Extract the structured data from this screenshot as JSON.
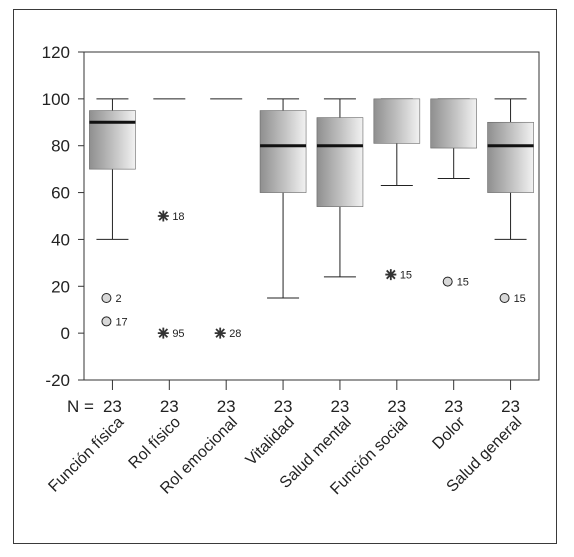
{
  "chart_data": {
    "type": "boxplot",
    "title": "",
    "xlabel": "",
    "ylabel": "",
    "ylim": [
      -20,
      120
    ],
    "yticks": [
      -20,
      0,
      20,
      40,
      60,
      80,
      100,
      120
    ],
    "n_label": "N =",
    "categories": [
      "Función física",
      "Rol físico",
      "Rol emocional",
      "Vitalidad",
      "Salud mental",
      "Función social",
      "Dolor",
      "Salud general"
    ],
    "n_values": [
      "23",
      "23",
      "23",
      "23",
      "23",
      "23",
      "23",
      "23"
    ],
    "boxes": [
      {
        "category": "Función física",
        "whisker_low": 40,
        "q1": 70,
        "median": 90,
        "q3": 95,
        "whisker_high": 100
      },
      {
        "category": "Rol físico",
        "whisker_low": 100,
        "q1": 100,
        "median": 100,
        "q3": 100,
        "whisker_high": 100
      },
      {
        "category": "Rol emocional",
        "whisker_low": 100,
        "q1": 100,
        "median": 100,
        "q3": 100,
        "whisker_high": 100
      },
      {
        "category": "Vitalidad",
        "whisker_low": 15,
        "q1": 60,
        "median": 80,
        "q3": 95,
        "whisker_high": 100
      },
      {
        "category": "Salud mental",
        "whisker_low": 24,
        "q1": 54,
        "median": 80,
        "q3": 92,
        "whisker_high": 100
      },
      {
        "category": "Función social",
        "whisker_low": 63,
        "q1": 81,
        "median": 100,
        "q3": 100,
        "whisker_high": 100
      },
      {
        "category": "Dolor",
        "whisker_low": 66,
        "q1": 79,
        "median": 100,
        "q3": 100,
        "whisker_high": 100
      },
      {
        "category": "Salud general",
        "whisker_low": 40,
        "q1": 60,
        "median": 80,
        "q3": 90,
        "whisker_high": 100
      }
    ],
    "outliers": [
      {
        "category": "Función física",
        "value": 15,
        "marker": "circle",
        "label": "2"
      },
      {
        "category": "Función física",
        "value": 5,
        "marker": "circle",
        "label": "17"
      },
      {
        "category": "Rol físico",
        "value": 50,
        "marker": "star",
        "label": "18"
      },
      {
        "category": "Rol físico",
        "value": 0,
        "marker": "star",
        "label": "95"
      },
      {
        "category": "Rol emocional",
        "value": 0,
        "marker": "star",
        "label": "28"
      },
      {
        "category": "Función social",
        "value": 25,
        "marker": "star",
        "label": "15"
      },
      {
        "category": "Dolor",
        "value": 22,
        "marker": "circle",
        "label": "15"
      },
      {
        "category": "Salud general",
        "value": 15,
        "marker": "circle",
        "label": "15"
      }
    ]
  }
}
